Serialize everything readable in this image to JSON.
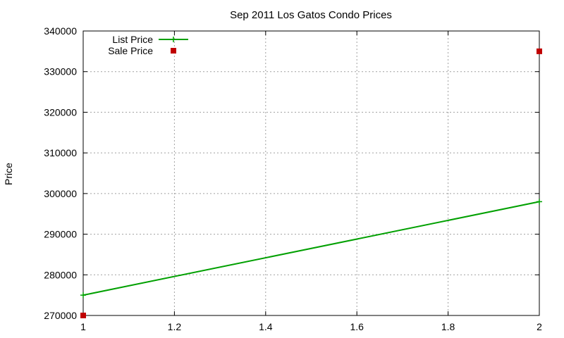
{
  "chart_data": {
    "type": "line",
    "title": "Sep 2011 Los Gatos Condo Prices",
    "xlabel": "",
    "ylabel": "Price",
    "xlim": [
      1,
      2
    ],
    "ylim": [
      270000,
      340000
    ],
    "x_ticks": [
      "1",
      "1.2",
      "1.4",
      "1.6",
      "1.8",
      "2"
    ],
    "y_ticks": [
      "270000",
      "280000",
      "290000",
      "300000",
      "310000",
      "320000",
      "330000",
      "340000"
    ],
    "x_tick_values": [
      1,
      1.2,
      1.4,
      1.6,
      1.8,
      2
    ],
    "y_tick_values": [
      270000,
      280000,
      290000,
      300000,
      310000,
      320000,
      330000,
      340000
    ],
    "grid": true,
    "legend_position": "top-left",
    "series": [
      {
        "name": "List Price",
        "style": "linespoints",
        "color": "#00a000",
        "points": [
          {
            "x": 1,
            "y": 275000
          },
          {
            "x": 2,
            "y": 298000
          }
        ]
      },
      {
        "name": "Sale Price",
        "style": "points",
        "color": "#c00000",
        "points": [
          {
            "x": 1,
            "y": 270000
          },
          {
            "x": 2,
            "y": 335000
          }
        ]
      }
    ]
  }
}
